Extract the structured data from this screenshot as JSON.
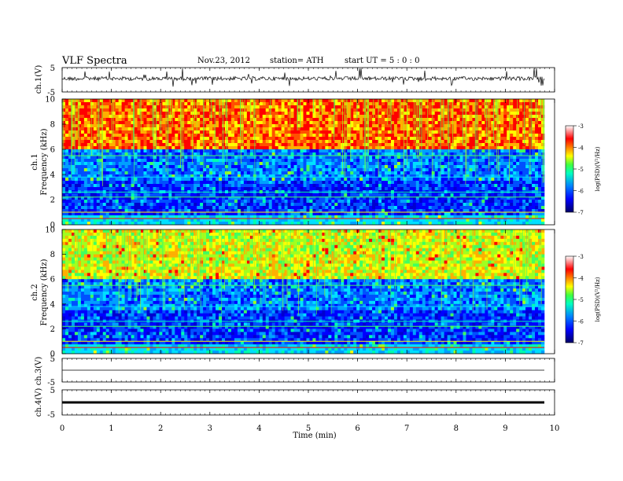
{
  "header": {
    "title": "VLF  Spectra",
    "date": "Nov.23, 2012",
    "station": "station= ATH",
    "start": "start  UT  =    5  : 0  : 0"
  },
  "chart_data": [
    {
      "type": "line",
      "ylabel": "ch.1(V)",
      "ylim": [
        -5,
        5
      ],
      "yticks": [
        "5",
        "-5"
      ],
      "xlim": [
        0,
        10
      ],
      "note_values": "noisy waveform centered near 2 V with spikes"
    },
    {
      "type": "heatmap",
      "ylabel_top": "ch.1",
      "ylabel": "Frequency  (kHz)",
      "ylim": [
        0,
        10
      ],
      "yticks": [
        "0",
        "2",
        "4",
        "6",
        "8",
        "10"
      ],
      "xlim": [
        0,
        9.8
      ],
      "colorbar": {
        "label": "log(PSD)(V²/Hz)",
        "range": [
          -7,
          -3
        ],
        "ticks": [
          "-3",
          "-4",
          "-5",
          "-6",
          "-7"
        ]
      }
    },
    {
      "type": "heatmap",
      "ylabel_top": "ch.2",
      "ylabel": "Frequency  (kHz)",
      "ylim": [
        0,
        10
      ],
      "yticks": [
        "0",
        "2",
        "4",
        "6",
        "8",
        "10"
      ],
      "xlim": [
        0,
        9.8
      ],
      "colorbar": {
        "label": "log(PSD)(V²/Hz)",
        "range": [
          -7,
          -3
        ],
        "ticks": [
          "-3",
          "-4",
          "-5",
          "-6",
          "-7"
        ]
      }
    },
    {
      "type": "line",
      "ylabel": "ch.3(V)",
      "ylim": [
        -5,
        5
      ],
      "yticks": [
        "5",
        "-5"
      ],
      "values_constant": 0
    },
    {
      "type": "line",
      "ylabel": "ch.4(V)",
      "ylim": [
        -5,
        5
      ],
      "yticks": [
        "5",
        "-5"
      ],
      "values_constant": 0
    }
  ],
  "xaxis": {
    "label": "Time  (min)",
    "ticks": [
      "0",
      "1",
      "2",
      "3",
      "4",
      "5",
      "6",
      "7",
      "8",
      "9",
      "10"
    ],
    "range": [
      0,
      10
    ]
  }
}
